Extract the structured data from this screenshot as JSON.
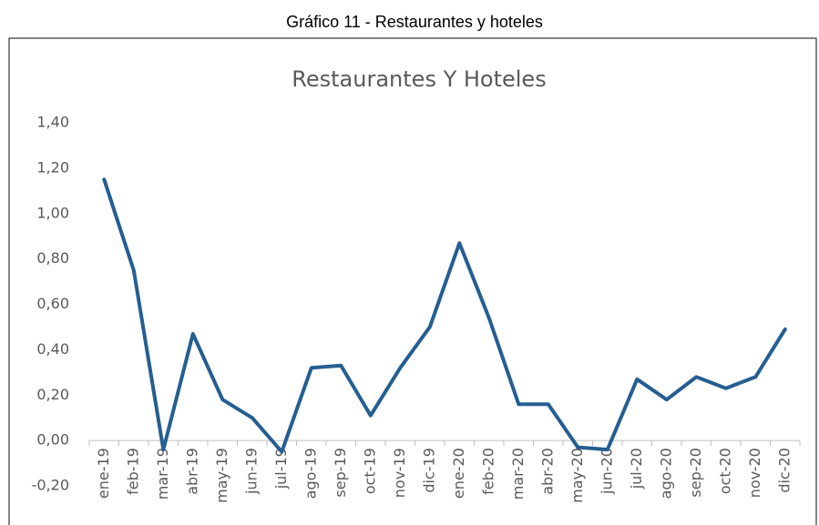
{
  "caption": "Gráfico  11 - Restaurantes y hoteles",
  "chart_data": {
    "type": "line",
    "title": "Restaurantes Y Hoteles",
    "categories": [
      "ene-19",
      "feb-19",
      "mar-19",
      "abr-19",
      "may-19",
      "jun-19",
      "jul-19",
      "ago-19",
      "sep-19",
      "oct-19",
      "nov-19",
      "dic-19",
      "ene-20",
      "feb-20",
      "mar-20",
      "abr-20",
      "may-20",
      "jun-20",
      "jul-20",
      "ago-20",
      "sep-20",
      "oct-20",
      "nov-20",
      "dic-20"
    ],
    "values": [
      1.15,
      0.75,
      -0.04,
      0.47,
      0.18,
      0.1,
      -0.05,
      0.32,
      0.33,
      0.11,
      0.32,
      0.5,
      0.87,
      0.54,
      0.16,
      0.16,
      -0.03,
      -0.04,
      0.27,
      0.18,
      0.28,
      0.23,
      0.28,
      0.49
    ],
    "color": "#255e91",
    "ylim": [
      -0.2,
      1.4
    ],
    "yticks": [
      {
        "value": -0.2,
        "label": "-0,20"
      },
      {
        "value": 0,
        "label": "0,00"
      },
      {
        "value": 0.2,
        "label": "0,20"
      },
      {
        "value": 0.4,
        "label": "0,40"
      },
      {
        "value": 0.6,
        "label": "0,60"
      },
      {
        "value": 0.8,
        "label": "0,80"
      },
      {
        "value": 1.0,
        "label": "1,00"
      },
      {
        "value": 1.2,
        "label": "1,20"
      },
      {
        "value": 1.4,
        "label": "1,40"
      }
    ],
    "grid": false
  }
}
